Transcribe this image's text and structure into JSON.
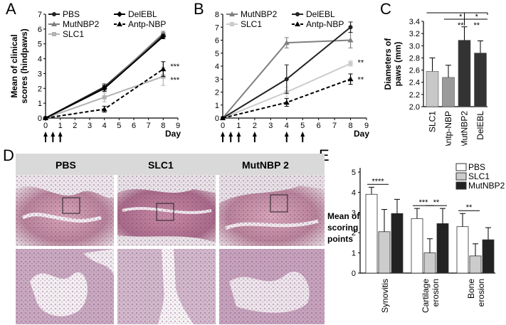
{
  "panels": {
    "A": {
      "letter": "A",
      "chart_data": {
        "type": "line",
        "ylabel": "Mean of clinical scores (hindpaws)",
        "ylabel_lines": [
          "Mean of clinical",
          "scores (hindpaws)"
        ],
        "xlabel": "Day",
        "xlim": [
          0,
          9
        ],
        "ylim": [
          0,
          7
        ],
        "xticks": [
          0,
          1,
          2,
          3,
          4,
          5,
          6,
          7,
          8,
          9
        ],
        "yticks": [
          0,
          1,
          2,
          3,
          4,
          5,
          6,
          7
        ],
        "x": [
          0,
          4,
          8
        ],
        "series": [
          {
            "name": "PBS",
            "values": [
              0,
              2.1,
              5.6
            ],
            "err": [
              0,
              0.2,
              0.15
            ],
            "color": "#222222",
            "dash": false,
            "marker": "circle"
          },
          {
            "name": "MutNBP2",
            "values": [
              0,
              2.0,
              5.7
            ],
            "err": [
              0,
              0.2,
              0.15
            ],
            "color": "#808080",
            "dash": false,
            "marker": "triangle"
          },
          {
            "name": "SLC1",
            "values": [
              0,
              1.4,
              2.8
            ],
            "err": [
              0,
              0.3,
              0.6
            ],
            "color": "#b3b3b3",
            "dash": false,
            "marker": "square"
          },
          {
            "name": "DelEBL",
            "values": [
              0,
              2.0,
              5.5
            ],
            "err": [
              0,
              0.2,
              0.15
            ],
            "color": "#000000",
            "dash": false,
            "marker": "diamond"
          },
          {
            "name": "Antp-NBP",
            "values": [
              0,
              0.6,
              3.3
            ],
            "err": [
              0,
              0.2,
              0.5
            ],
            "color": "#000000",
            "dash": true,
            "marker": "triangle"
          }
        ],
        "legend_col1": [
          "PBS",
          "MutNBP2",
          "SLC1"
        ],
        "legend_col2": [
          "DelEBL",
          "Antp-NBP"
        ],
        "annotations": [
          {
            "x": 8,
            "y": 3.5,
            "text": "***"
          },
          {
            "x": 8,
            "y": 2.6,
            "text": "***"
          }
        ],
        "arrows_x": [
          0,
          0.5,
          1
        ]
      }
    },
    "B": {
      "letter": "B",
      "chart_data": {
        "type": "line",
        "xlabel": "Day",
        "xlim": [
          0,
          9
        ],
        "ylim": [
          0,
          8
        ],
        "xticks": [
          0,
          1,
          2,
          3,
          4,
          5,
          6,
          7,
          8,
          9
        ],
        "yticks": [
          0,
          1,
          2,
          3,
          4,
          5,
          6,
          7,
          8
        ],
        "x": [
          0,
          4,
          8
        ],
        "series": [
          {
            "name": "MutNBP2",
            "values": [
              0,
              5.8,
              6.0
            ],
            "err": [
              0,
              0.4,
              0.6
            ],
            "color": "#808080",
            "dash": false,
            "marker": "triangle"
          },
          {
            "name": "SLC1",
            "values": [
              0,
              2.0,
              4.2
            ],
            "err": [
              0,
              0.4,
              0.2
            ],
            "color": "#cccccc",
            "dash": false,
            "marker": "square"
          },
          {
            "name": "DelEBL",
            "values": [
              0,
              3.0,
              7.0
            ],
            "err": [
              0,
              1.1,
              0.4
            ],
            "color": "#222222",
            "dash": false,
            "marker": "circle"
          },
          {
            "name": "Antp-NBP",
            "values": [
              0,
              1.2,
              3.0
            ],
            "err": [
              0,
              0.3,
              0.4
            ],
            "color": "#000000",
            "dash": true,
            "marker": "triangle"
          }
        ],
        "legend_col1": [
          "MutNBP2",
          "SLC1"
        ],
        "legend_col2": [
          "DelEBL",
          "Antp-NBP"
        ],
        "annotations": [
          {
            "x": 8,
            "y": 4.3,
            "text": "**"
          },
          {
            "x": 8,
            "y": 3.0,
            "text": "**"
          }
        ],
        "arrows_x": [
          0,
          0.5,
          1,
          2,
          4,
          5
        ]
      }
    },
    "C": {
      "letter": "C",
      "chart_data": {
        "type": "bar",
        "ylabel": "Diameters of paws (mm)",
        "ylabel_lines": [
          "Diameters of",
          "paws (mm)"
        ],
        "categories": [
          "SLC1",
          "Antp-NBP",
          "MutNBP2",
          "DelEBL"
        ],
        "values": [
          2.58,
          2.48,
          3.09,
          2.88
        ],
        "err": [
          0.22,
          0.2,
          0.22,
          0.2
        ],
        "colors": [
          "#c8c8c8",
          "#9a9a9a",
          "#333333",
          "#333333"
        ],
        "ylim": [
          2.0,
          3.4
        ],
        "yticks": [
          2.0,
          2.2,
          2.4,
          2.6,
          2.8,
          3.0,
          3.2,
          3.4
        ],
        "brackets": [
          {
            "from": 0,
            "to": 3,
            "text": "*",
            "y": 3.36
          },
          {
            "from": 2,
            "to": 3,
            "text": "*",
            "y": 3.36
          },
          {
            "from": 1,
            "to": 2,
            "text": "**",
            "y": 3.22
          },
          {
            "from": 2,
            "to": 3,
            "text": "**",
            "y": 3.22
          }
        ]
      }
    },
    "D": {
      "letter": "D",
      "headers": [
        "PBS",
        "SLC1",
        "MutNBP 2"
      ]
    },
    "E": {
      "letter": "E",
      "chart_data": {
        "type": "bar",
        "ylabel": "Mean of scoring points",
        "ylabel_lines": [
          "Mean of",
          "scoring",
          "points"
        ],
        "categories": [
          "Synovitis",
          "Cartilage erosion",
          "Bone erosion"
        ],
        "category_lines": [
          [
            "Synovitis"
          ],
          [
            "Cartilage",
            "erosion"
          ],
          [
            "Bone",
            "erosion"
          ]
        ],
        "series": [
          {
            "name": "PBS",
            "values": [
              3.9,
              2.7,
              2.3
            ],
            "err": [
              0.35,
              0.5,
              0.65
            ],
            "color": "#ffffff"
          },
          {
            "name": "SLC1",
            "values": [
              2.05,
              1.0,
              0.85
            ],
            "err": [
              1.1,
              0.7,
              0.6
            ],
            "color": "#cccccc"
          },
          {
            "name": "MutNBP2",
            "values": [
              2.95,
              2.45,
              1.65
            ],
            "err": [
              0.7,
              0.75,
              0.6
            ],
            "color": "#222222"
          }
        ],
        "ylim": [
          0,
          5
        ],
        "yticks": [
          0,
          1,
          2,
          3,
          4,
          5
        ],
        "sig": [
          {
            "cat": 0,
            "from": 0,
            "to": 1,
            "text": "****"
          },
          {
            "cat": 1,
            "from": 0,
            "to": 1,
            "text": "***"
          },
          {
            "cat": 1,
            "from": 1,
            "to": 2,
            "text": "**"
          },
          {
            "cat": 2,
            "from": 0,
            "to": 1,
            "text": "**"
          }
        ]
      }
    }
  }
}
